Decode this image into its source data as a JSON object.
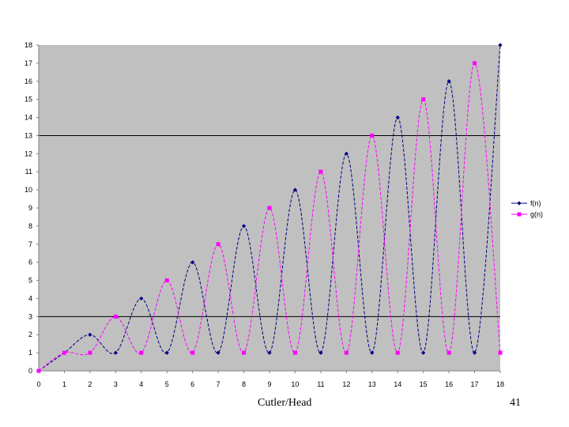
{
  "footer": {
    "left": "Cutler/Head",
    "right": "41"
  },
  "chart_data": {
    "type": "line",
    "title": "",
    "xlabel": "",
    "ylabel": "",
    "x": [
      0,
      1,
      2,
      3,
      4,
      5,
      6,
      7,
      8,
      9,
      10,
      11,
      12,
      13,
      14,
      15,
      16,
      17,
      18
    ],
    "xlim": [
      0,
      18
    ],
    "ylim": [
      0,
      18
    ],
    "xticks": [
      0,
      1,
      2,
      3,
      4,
      5,
      6,
      7,
      8,
      9,
      10,
      11,
      12,
      13,
      14,
      15,
      16,
      17,
      18
    ],
    "yticks": [
      0,
      1,
      2,
      3,
      4,
      5,
      6,
      7,
      8,
      9,
      10,
      11,
      12,
      13,
      14,
      15,
      16,
      17,
      18
    ],
    "gridlines_y": [
      3,
      13
    ],
    "plot_background": "#c0c0c0",
    "smooth": true,
    "legend_position": "right",
    "series": [
      {
        "name": "f(n)",
        "color": "#000080",
        "marker": "diamond",
        "line_style": "dashed",
        "values": [
          0,
          1,
          2,
          1,
          4,
          1,
          6,
          1,
          8,
          1,
          10,
          1,
          12,
          1,
          14,
          1,
          16,
          1,
          18
        ]
      },
      {
        "name": "g(n)",
        "color": "#ff00ff",
        "marker": "square",
        "line_style": "dashed",
        "values": [
          0,
          1,
          1,
          3,
          1,
          5,
          1,
          7,
          1,
          9,
          1,
          11,
          1,
          13,
          1,
          15,
          1,
          17,
          1
        ]
      }
    ]
  }
}
